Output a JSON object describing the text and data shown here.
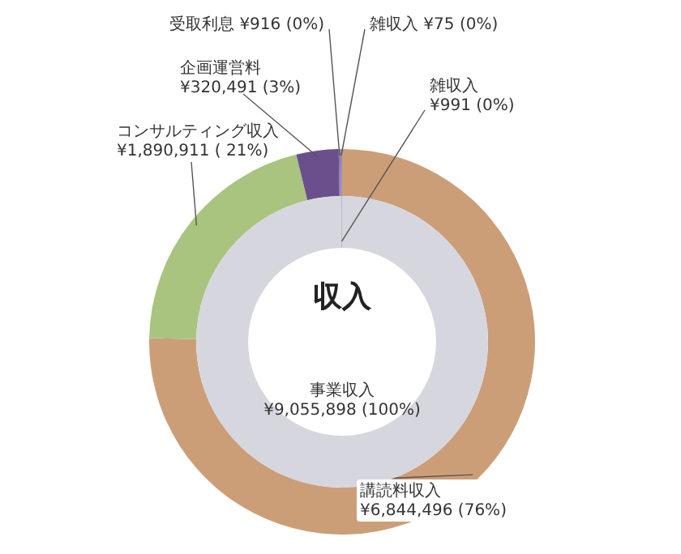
{
  "chart_data": [
    {
      "type": "donut",
      "title": "収入",
      "legend": false,
      "categories": [
        "講読料収入",
        "コンサルティング収入",
        "企画運営料",
        "受取利息",
        "雑収入"
      ],
      "values": [
        6844496,
        1890911,
        320491,
        916,
        75
      ],
      "colors": [
        "#cc9e78",
        "#a9c47f",
        "#6b4f8c",
        "#8a7aa8",
        "#9a8ab8"
      ],
      "value_labels": [
        "¥6,844,496 (76%)",
        "¥1,890,911 ( 21%)",
        "¥320,491 (3%)",
        "¥916 (0%)",
        "¥75 (0%)"
      ]
    },
    {
      "type": "donut",
      "legend": false,
      "categories": [
        "事業収入",
        "雑収入"
      ],
      "values": [
        9055898,
        991
      ],
      "colors": [
        "#d6d6de",
        "#bdbdc8"
      ],
      "value_labels": [
        "¥9,055,898 (100%)",
        "¥991 (0%)"
      ]
    }
  ]
}
